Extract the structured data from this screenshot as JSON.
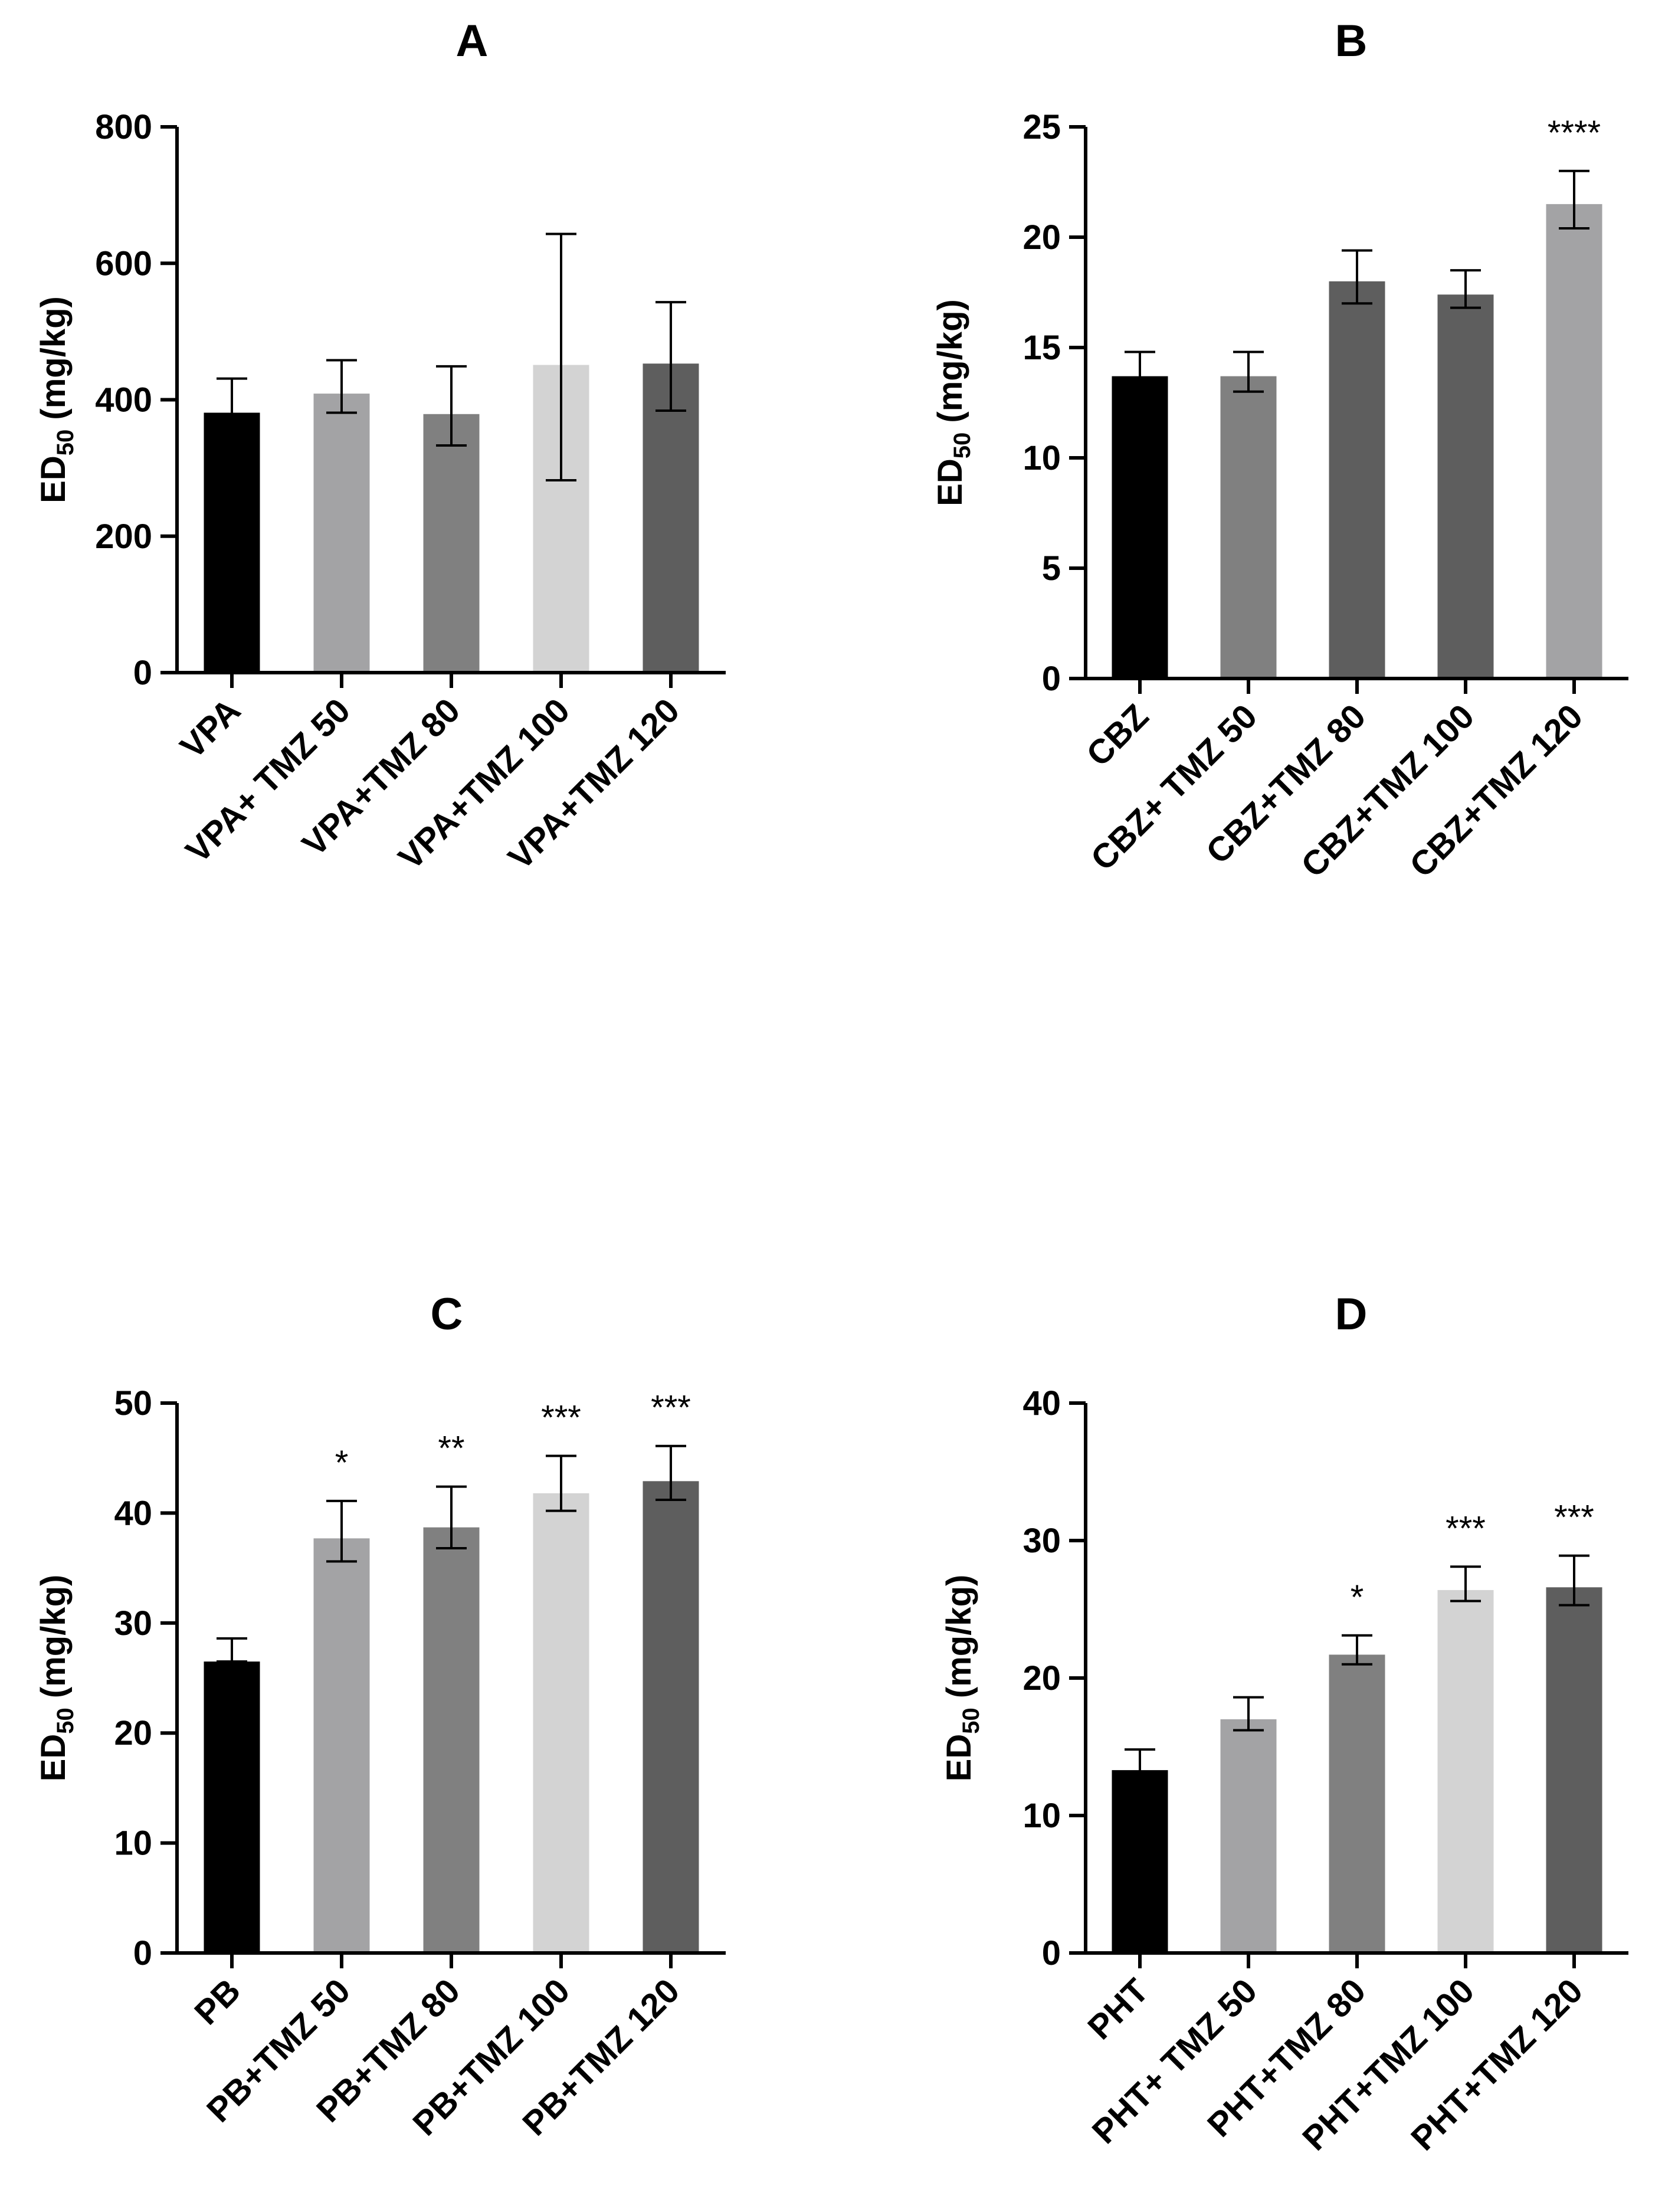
{
  "chart_data": [
    {
      "type": "bar",
      "title": "A",
      "ylabel_main": "ED",
      "ylabel_sub": "50",
      "ylabel_unit": " (mg/kg)",
      "ylim": [
        0,
        800
      ],
      "yticks": [
        0,
        200,
        400,
        600,
        800
      ],
      "categories": [
        "VPA",
        "VPA+ TMZ 50",
        "VPA+TMZ 80",
        "VPA+TMZ 100",
        "VPA+TMZ 120"
      ],
      "values": [
        381,
        409,
        379,
        451,
        453
      ],
      "err_low": [
        331,
        381,
        333,
        282,
        384
      ],
      "err_high": [
        431,
        458,
        449,
        643,
        543
      ],
      "significance": [
        "",
        "",
        "",
        "",
        ""
      ],
      "colors": [
        "#000000",
        "#a3a3a5",
        "#808080",
        "#d3d3d3",
        "#5e5e5e"
      ]
    },
    {
      "type": "bar",
      "title": "B",
      "ylabel_main": "ED",
      "ylabel_sub": "50",
      "ylabel_unit": " (mg/kg)",
      "ylim": [
        0,
        25
      ],
      "yticks": [
        0,
        5,
        10,
        15,
        20,
        25
      ],
      "categories": [
        "CBZ",
        "CBZ+ TMZ 50",
        "CBZ+TMZ 80",
        "CBZ+TMZ 100",
        "CBZ+TMZ 120"
      ],
      "values": [
        13.7,
        13.7,
        18.0,
        17.4,
        21.5
      ],
      "err_low": [
        12.8,
        13.0,
        17.0,
        16.8,
        20.4
      ],
      "err_high": [
        14.8,
        14.8,
        19.4,
        18.5,
        23.0
      ],
      "significance": [
        "",
        "",
        "",
        "",
        "****"
      ],
      "colors": [
        "#000000",
        "#808080",
        "#5e5e5e",
        "#5e5e5e",
        "#a3a3a5"
      ]
    },
    {
      "type": "bar",
      "title": "C",
      "ylabel_main": "ED",
      "ylabel_sub": "50",
      "ylabel_unit": " (mg/kg)",
      "ylim": [
        0,
        50
      ],
      "yticks": [
        0,
        10,
        20,
        30,
        40,
        50
      ],
      "categories": [
        "PB",
        "PB+TMZ 50",
        "PB+TMZ 80",
        "PB+TMZ 100",
        "PB+TMZ 120"
      ],
      "values": [
        26.5,
        37.7,
        38.7,
        41.8,
        42.9
      ],
      "err_low": [
        26.5,
        35.6,
        36.8,
        40.2,
        41.2
      ],
      "err_high": [
        28.6,
        41.1,
        42.4,
        45.2,
        46.1
      ],
      "significance": [
        "",
        "*",
        "**",
        "***",
        "***"
      ],
      "colors": [
        "#000000",
        "#a3a3a5",
        "#808080",
        "#d3d3d3",
        "#5e5e5e"
      ]
    },
    {
      "type": "bar",
      "title": "D",
      "ylabel_main": "ED",
      "ylabel_sub": "50",
      "ylabel_unit": " (mg/kg)",
      "ylim": [
        0,
        40
      ],
      "yticks": [
        0,
        10,
        20,
        30,
        40
      ],
      "categories": [
        "PHT",
        "PHT+ TMZ 50",
        "PHT+TMZ 80",
        "PHT+TMZ 100",
        "PHT+TMZ 120"
      ],
      "values": [
        13.3,
        17.0,
        21.7,
        26.4,
        26.6
      ],
      "err_low": [
        12.1,
        16.2,
        21.0,
        25.6,
        25.3
      ],
      "err_high": [
        14.8,
        18.6,
        23.1,
        28.1,
        28.9
      ],
      "significance": [
        "",
        "",
        "*",
        "***",
        "***"
      ],
      "colors": [
        "#000000",
        "#a3a3a5",
        "#808080",
        "#d3d3d3",
        "#5e5e5e"
      ]
    }
  ]
}
